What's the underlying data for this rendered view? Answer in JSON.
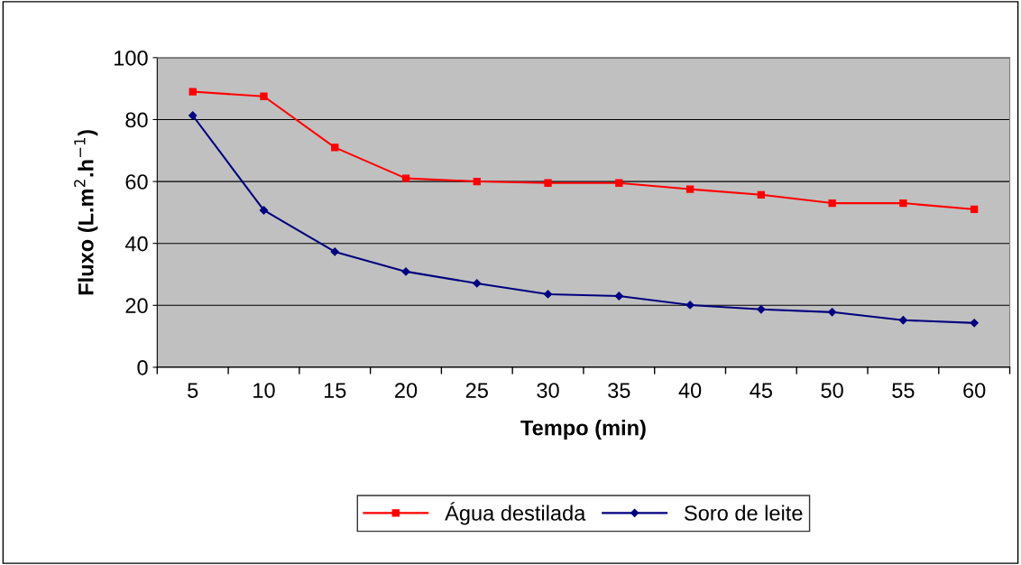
{
  "chart_data": {
    "type": "line",
    "categories": [
      "5",
      "10",
      "15",
      "20",
      "25",
      "30",
      "35",
      "40",
      "45",
      "50",
      "55",
      "60"
    ],
    "xlabel": "Tempo (min)",
    "ylabel": "Fluxo (L.m$^{2}$.h$^{−1}$)",
    "ylim": [
      0,
      100
    ],
    "yticks": [
      0,
      20,
      40,
      60,
      80,
      100
    ],
    "grid": "y",
    "legend": "bottom",
    "series": [
      {
        "name": "Água destilada",
        "color": "#ff0000",
        "marker": "square",
        "values": [
          89,
          87.5,
          71,
          61,
          60,
          59.5,
          59.5,
          57.5,
          55.7,
          53,
          53,
          51
        ]
      },
      {
        "name": "Soro de leite",
        "color": "#000080",
        "marker": "diamond",
        "values": [
          81.3,
          50.7,
          37.3,
          30.9,
          27.1,
          23.6,
          23,
          20.1,
          18.7,
          17.8,
          15.2,
          14.3
        ]
      }
    ]
  }
}
